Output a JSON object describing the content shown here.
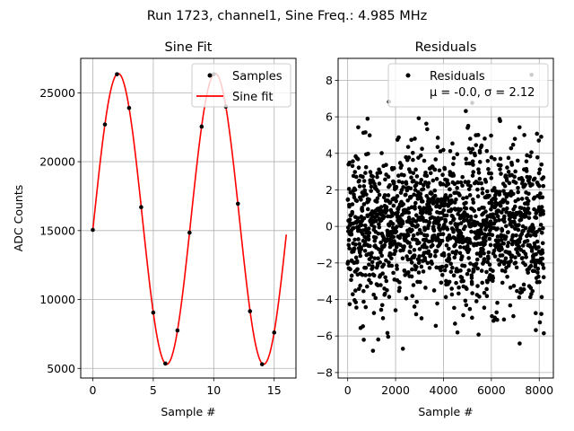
{
  "suptitle": "Run 1723, channel1, Sine Freq.: 4.985 MHz",
  "chart_data": [
    {
      "type": "line",
      "title": "Sine Fit",
      "xlabel": "Sample #",
      "ylabel": "ADC Counts",
      "xlim": [
        -1,
        16.8
      ],
      "ylim": [
        4300,
        27500
      ],
      "grid": true,
      "xticks": [
        0,
        5,
        10,
        15
      ],
      "yticks": [
        5000,
        10000,
        15000,
        20000,
        25000
      ],
      "legend": {
        "placement": "top-right",
        "entries": [
          "Samples",
          "Sine fit"
        ]
      },
      "series": [
        {
          "name": "Samples",
          "kind": "scatter",
          "color": "#000000",
          "x": [
            0,
            1,
            2,
            3,
            4,
            5,
            6,
            7,
            8,
            9,
            10,
            11,
            12,
            13,
            14,
            15
          ],
          "y": [
            15050,
            22700,
            26350,
            23900,
            16700,
            9050,
            5350,
            7750,
            14850,
            22550,
            26350,
            24000,
            16950,
            9150,
            5300,
            7600
          ]
        },
        {
          "name": "Sine fit",
          "kind": "line",
          "color": "#ff0000",
          "model": {
            "amplitude": 10550,
            "offset": 15850,
            "period": 8.02,
            "phase": -0.0769,
            "x_range": [
              0,
              16
            ]
          }
        }
      ]
    },
    {
      "type": "scatter",
      "title": "Residuals",
      "xlabel": "Sample #",
      "ylabel": "",
      "xlim": [
        -400,
        8590
      ],
      "ylim": [
        -8.3,
        9.2
      ],
      "grid": true,
      "xticks": [
        0,
        2000,
        4000,
        6000,
        8000
      ],
      "yticks": [
        -8,
        -6,
        -4,
        -2,
        0,
        2,
        4,
        6,
        8
      ],
      "legend": {
        "placement": "top-right",
        "entries": [
          "Residuals",
          "μ = -0.0, σ = 2.12"
        ]
      },
      "series": [
        {
          "name": "Residuals",
          "color": "#000000",
          "x_range": [
            0,
            8191
          ],
          "mean": -0.0,
          "std": 2.12,
          "min": -7.5,
          "max": 8.3
        }
      ]
    }
  ]
}
